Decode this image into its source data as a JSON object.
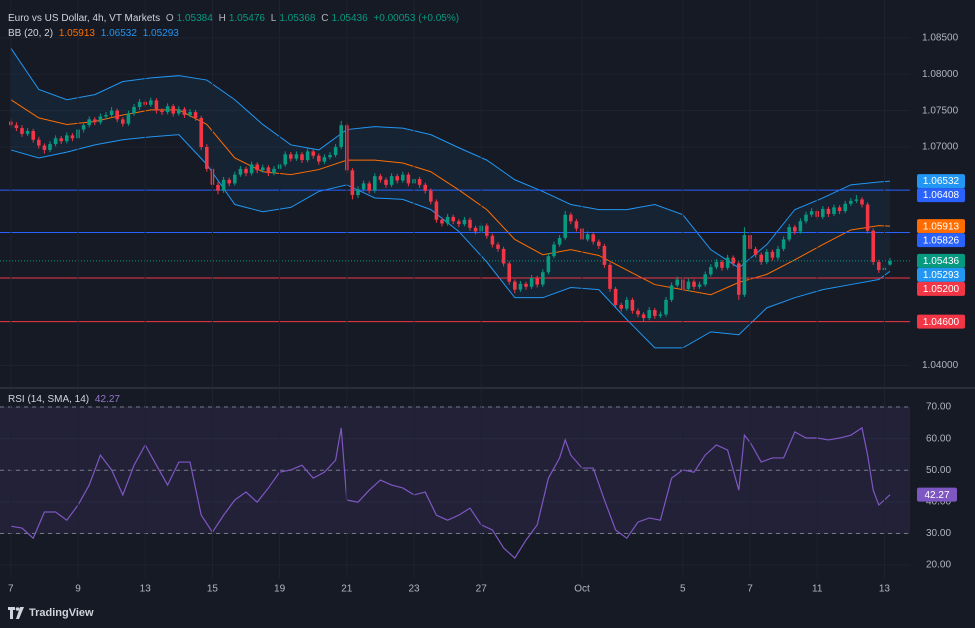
{
  "chart_data": {
    "type": "candlestick",
    "title": "Euro vs US Dollar, 4h, VT Markets",
    "ohlc_labels": [
      "O",
      "H",
      "L",
      "C"
    ],
    "change": "+0.00053 (+0.05%)",
    "up_color": "#089981",
    "down_color": "#f23645",
    "grid": true,
    "xlim": [
      -1.93,
      160.57
    ],
    "xticks": [
      {
        "value": 0,
        "label": "7"
      },
      {
        "value": 12,
        "label": "9"
      },
      {
        "value": 24,
        "label": "13"
      },
      {
        "value": 36,
        "label": "15"
      },
      {
        "value": 48,
        "label": "19"
      },
      {
        "value": 60,
        "label": "21"
      },
      {
        "value": 72,
        "label": "23"
      },
      {
        "value": 84,
        "label": "27"
      },
      {
        "value": 102,
        "label": "Oct"
      },
      {
        "value": 120,
        "label": "5"
      },
      {
        "value": 132,
        "label": "7"
      },
      {
        "value": 144,
        "label": "11"
      },
      {
        "value": 156,
        "label": "13"
      }
    ],
    "ylim": [
      1.0373,
      1.0902
    ],
    "yticks": [
      {
        "value": 1.085,
        "label": "1.08500"
      },
      {
        "value": 1.08,
        "label": "1.08000"
      },
      {
        "value": 1.075,
        "label": "1.07500"
      },
      {
        "value": 1.07,
        "label": "1.07000"
      },
      {
        "value": 1.04,
        "label": "1.04000"
      }
    ],
    "candles": [
      [
        1.0735,
        1.0739,
        1.0726,
        1.073
      ],
      [
        1.073,
        1.0734,
        1.0722,
        1.0726
      ],
      [
        1.0726,
        1.073,
        1.0714,
        1.0718
      ],
      [
        1.0718,
        1.0726,
        1.0715,
        1.0722
      ],
      [
        1.0722,
        1.0725,
        1.0706,
        1.071
      ],
      [
        1.071,
        1.0714,
        1.0698,
        1.0702
      ],
      [
        1.0702,
        1.0705,
        1.0691,
        1.0696
      ],
      [
        1.0696,
        1.0708,
        1.0693,
        1.0704
      ],
      [
        1.0704,
        1.0716,
        1.0701,
        1.0712
      ],
      [
        1.0712,
        1.0715,
        1.0704,
        1.0708
      ],
      [
        1.0708,
        1.072,
        1.0705,
        1.0716
      ],
      [
        1.0716,
        1.0719,
        1.0708,
        1.0712
      ],
      [
        1.0712,
        1.0728,
        1.0709,
        1.0724
      ],
      [
        1.0724,
        1.0734,
        1.072,
        1.073
      ],
      [
        1.073,
        1.0742,
        1.0727,
        1.0738
      ],
      [
        1.0738,
        1.0741,
        1.073,
        1.0734
      ],
      [
        1.0734,
        1.0746,
        1.0731,
        1.0742
      ],
      [
        1.0742,
        1.0748,
        1.0738,
        1.0744
      ],
      [
        1.0744,
        1.0755,
        1.074,
        1.075
      ],
      [
        1.075,
        1.0753,
        1.0734,
        1.0738
      ],
      [
        1.0738,
        1.0741,
        1.0728,
        1.0732
      ],
      [
        1.0732,
        1.075,
        1.0729,
        1.0746
      ],
      [
        1.0746,
        1.0759,
        1.0743,
        1.0755
      ],
      [
        1.0755,
        1.0766,
        1.0751,
        1.0762
      ],
      [
        1.0762,
        1.0765,
        1.0754,
        1.0758
      ],
      [
        1.0758,
        1.0768,
        1.0755,
        1.0764
      ],
      [
        1.0764,
        1.0767,
        1.0746,
        1.075
      ],
      [
        1.075,
        1.0753,
        1.0744,
        1.0748
      ],
      [
        1.0748,
        1.076,
        1.0745,
        1.0756
      ],
      [
        1.0756,
        1.0759,
        1.0742,
        1.0746
      ],
      [
        1.0746,
        1.0756,
        1.0743,
        1.0752
      ],
      [
        1.0752,
        1.0755,
        1.074,
        1.0744
      ],
      [
        1.0744,
        1.0752,
        1.0741,
        1.0748
      ],
      [
        1.0748,
        1.0751,
        1.0736,
        1.074
      ],
      [
        1.074,
        1.0743,
        1.0696,
        1.07
      ],
      [
        1.07,
        1.0704,
        1.0666,
        1.067
      ],
      [
        1.067,
        1.0674,
        1.0644,
        1.0648
      ],
      [
        1.0648,
        1.0652,
        1.0635,
        1.064
      ],
      [
        1.064,
        1.0659,
        1.0637,
        1.0655
      ],
      [
        1.0655,
        1.0658,
        1.0646,
        1.065
      ],
      [
        1.065,
        1.0666,
        1.0647,
        1.0662
      ],
      [
        1.0662,
        1.0674,
        1.0659,
        1.067
      ],
      [
        1.067,
        1.0673,
        1.066,
        1.0664
      ],
      [
        1.0664,
        1.068,
        1.0661,
        1.0676
      ],
      [
        1.0676,
        1.0679,
        1.0664,
        1.0668
      ],
      [
        1.0668,
        1.0676,
        1.0665,
        1.0672
      ],
      [
        1.0672,
        1.0675,
        1.066,
        1.0664
      ],
      [
        1.0664,
        1.0674,
        1.0661,
        1.067
      ],
      [
        1.067,
        1.068,
        1.0667,
        1.0676
      ],
      [
        1.0676,
        1.0694,
        1.0673,
        1.069
      ],
      [
        1.069,
        1.0693,
        1.068,
        1.0684
      ],
      [
        1.0684,
        1.0694,
        1.0681,
        1.069
      ],
      [
        1.069,
        1.0693,
        1.0678,
        1.0682
      ],
      [
        1.0682,
        1.0698,
        1.0679,
        1.0694
      ],
      [
        1.0694,
        1.0697,
        1.0684,
        1.0688
      ],
      [
        1.0688,
        1.0691,
        1.0676,
        1.068
      ],
      [
        1.068,
        1.069,
        1.0677,
        1.0686
      ],
      [
        1.0686,
        1.0693,
        1.0683,
        1.0689
      ],
      [
        1.0689,
        1.0704,
        1.0686,
        1.07
      ],
      [
        1.07,
        1.0736,
        1.0697,
        1.073
      ],
      [
        1.073,
        1.0733,
        1.0664,
        1.0668
      ],
      [
        1.0668,
        1.0671,
        1.0628,
        1.0634
      ],
      [
        1.0634,
        1.0646,
        1.063,
        1.0642
      ],
      [
        1.0642,
        1.0654,
        1.0639,
        1.065
      ],
      [
        1.065,
        1.0653,
        1.0636,
        1.064
      ],
      [
        1.064,
        1.0664,
        1.0637,
        1.066
      ],
      [
        1.066,
        1.0663,
        1.0651,
        1.0655
      ],
      [
        1.0655,
        1.0658,
        1.0644,
        1.0648
      ],
      [
        1.0648,
        1.0664,
        1.0645,
        1.066
      ],
      [
        1.066,
        1.0663,
        1.065,
        1.0654
      ],
      [
        1.0654,
        1.0666,
        1.0651,
        1.0662
      ],
      [
        1.0662,
        1.0665,
        1.0646,
        1.065
      ],
      [
        1.065,
        1.066,
        1.0647,
        1.0656
      ],
      [
        1.0656,
        1.0659,
        1.0644,
        1.0648
      ],
      [
        1.0648,
        1.0651,
        1.0636,
        1.064
      ],
      [
        1.064,
        1.0643,
        1.0621,
        1.0625
      ],
      [
        1.0625,
        1.0628,
        1.0596,
        1.06
      ],
      [
        1.06,
        1.0603,
        1.0591,
        1.0595
      ],
      [
        1.0595,
        1.0608,
        1.0592,
        1.0604
      ],
      [
        1.0604,
        1.0607,
        1.0594,
        1.0598
      ],
      [
        1.0598,
        1.0601,
        1.059,
        1.0594
      ],
      [
        1.0594,
        1.0604,
        1.0591,
        1.06
      ],
      [
        1.06,
        1.0603,
        1.0585,
        1.0589
      ],
      [
        1.0589,
        1.0592,
        1.058,
        1.0584
      ],
      [
        1.0584,
        1.0596,
        1.0581,
        1.0592
      ],
      [
        1.0592,
        1.0595,
        1.0574,
        1.0578
      ],
      [
        1.0578,
        1.0581,
        1.0562,
        1.0566
      ],
      [
        1.0566,
        1.0569,
        1.0556,
        1.056
      ],
      [
        1.056,
        1.0563,
        1.0536,
        1.054
      ],
      [
        1.054,
        1.0543,
        1.0511,
        1.0515
      ],
      [
        1.0515,
        1.0518,
        1.0499,
        1.0504
      ],
      [
        1.0504,
        1.0516,
        1.0501,
        1.0512
      ],
      [
        1.0512,
        1.0515,
        1.0504,
        1.0508
      ],
      [
        1.0508,
        1.0524,
        1.0505,
        1.052
      ],
      [
        1.052,
        1.0523,
        1.0507,
        1.0511
      ],
      [
        1.0511,
        1.0532,
        1.0508,
        1.0528
      ],
      [
        1.0528,
        1.0554,
        1.0525,
        1.055
      ],
      [
        1.055,
        1.057,
        1.0547,
        1.0566
      ],
      [
        1.0566,
        1.0579,
        1.0563,
        1.0575
      ],
      [
        1.0575,
        1.0612,
        1.0572,
        1.0607
      ],
      [
        1.0607,
        1.061,
        1.0594,
        1.0598
      ],
      [
        1.0598,
        1.0601,
        1.0584,
        1.0588
      ],
      [
        1.0588,
        1.0591,
        1.0569,
        1.0573
      ],
      [
        1.0573,
        1.0584,
        1.057,
        1.058
      ],
      [
        1.058,
        1.0583,
        1.0566,
        1.057
      ],
      [
        1.057,
        1.0573,
        1.056,
        1.0564
      ],
      [
        1.0564,
        1.0567,
        1.0534,
        1.0538
      ],
      [
        1.0538,
        1.0541,
        1.0501,
        1.0505
      ],
      [
        1.0505,
        1.0508,
        1.0479,
        1.0483
      ],
      [
        1.0483,
        1.0486,
        1.0474,
        1.0478
      ],
      [
        1.0478,
        1.0494,
        1.0475,
        1.049
      ],
      [
        1.049,
        1.0493,
        1.0471,
        1.0475
      ],
      [
        1.0475,
        1.0478,
        1.0466,
        1.047
      ],
      [
        1.047,
        1.0473,
        1.046,
        1.0465
      ],
      [
        1.0465,
        1.048,
        1.0462,
        1.0476
      ],
      [
        1.0476,
        1.0479,
        1.0464,
        1.0468
      ],
      [
        1.0468,
        1.0474,
        1.0465,
        1.047
      ],
      [
        1.047,
        1.0494,
        1.0467,
        1.049
      ],
      [
        1.049,
        1.0514,
        1.0487,
        1.051
      ],
      [
        1.051,
        1.0522,
        1.0507,
        1.0518
      ],
      [
        1.0518,
        1.0521,
        1.0501,
        1.0505
      ],
      [
        1.0505,
        1.0519,
        1.0502,
        1.0515
      ],
      [
        1.0515,
        1.0518,
        1.0504,
        1.0508
      ],
      [
        1.0508,
        1.0515,
        1.0505,
        1.0511
      ],
      [
        1.0511,
        1.0529,
        1.0508,
        1.0525
      ],
      [
        1.0525,
        1.0539,
        1.0522,
        1.0535
      ],
      [
        1.0535,
        1.0546,
        1.0532,
        1.0542
      ],
      [
        1.0542,
        1.0545,
        1.053,
        1.0534
      ],
      [
        1.0534,
        1.0552,
        1.0531,
        1.0548
      ],
      [
        1.0548,
        1.0551,
        1.0536,
        1.054
      ],
      [
        1.054,
        1.0543,
        1.049,
        1.0497
      ],
      [
        1.0497,
        1.059,
        1.0494,
        1.0579
      ],
      [
        1.0579,
        1.0582,
        1.0556,
        1.056
      ],
      [
        1.056,
        1.0563,
        1.0548,
        1.0552
      ],
      [
        1.0552,
        1.0555,
        1.0538,
        1.0542
      ],
      [
        1.0542,
        1.056,
        1.0539,
        1.0556
      ],
      [
        1.0556,
        1.0559,
        1.0544,
        1.0548
      ],
      [
        1.0548,
        1.0564,
        1.0545,
        1.056
      ],
      [
        1.056,
        1.0577,
        1.0557,
        1.0573
      ],
      [
        1.0573,
        1.0594,
        1.057,
        1.059
      ],
      [
        1.059,
        1.0593,
        1.058,
        1.0584
      ],
      [
        1.0584,
        1.0602,
        1.0581,
        1.0598
      ],
      [
        1.0598,
        1.0611,
        1.0595,
        1.0607
      ],
      [
        1.0607,
        1.0616,
        1.0604,
        1.0612
      ],
      [
        1.0612,
        1.0615,
        1.06,
        1.0604
      ],
      [
        1.0604,
        1.0619,
        1.0601,
        1.0615
      ],
      [
        1.0615,
        1.0618,
        1.0604,
        1.0608
      ],
      [
        1.0608,
        1.0621,
        1.0605,
        1.0617
      ],
      [
        1.0617,
        1.062,
        1.0608,
        1.0612
      ],
      [
        1.0612,
        1.0626,
        1.0609,
        1.0622
      ],
      [
        1.0622,
        1.063,
        1.0619,
        1.0626
      ],
      [
        1.0626,
        1.0634,
        1.0623,
        1.0628
      ],
      [
        1.0628,
        1.0631,
        1.0617,
        1.0621
      ],
      [
        1.0621,
        1.0624,
        1.0581,
        1.0585
      ],
      [
        1.0585,
        1.0588,
        1.0538,
        1.0542
      ],
      [
        1.0542,
        1.0545,
        1.0527,
        1.0531
      ],
      [
        1.0531,
        1.0538,
        1.0528,
        1.0534
      ],
      [
        1.05384,
        1.05476,
        1.05368,
        1.05436
      ]
    ],
    "bollinger": {
      "label": "BB (20, 2)",
      "fill": "rgba(33,150,243,0.07)",
      "x": [
        0,
        5,
        10,
        15,
        20,
        25,
        30,
        35,
        40,
        45,
        50,
        55,
        60,
        65,
        70,
        75,
        80,
        85,
        90,
        95,
        100,
        105,
        110,
        115,
        120,
        125,
        130,
        135,
        140,
        145,
        150,
        155,
        157
      ],
      "basis": {
        "color": "#ff6d00",
        "values": [
          1.0765,
          1.074,
          1.0731,
          1.0735,
          1.0744,
          1.0751,
          1.0751,
          1.0731,
          1.0685,
          1.0666,
          1.0662,
          1.0669,
          1.0682,
          1.0682,
          1.0678,
          1.0666,
          1.0641,
          1.0614,
          1.0573,
          1.0552,
          1.0559,
          1.0551,
          1.0531,
          1.0511,
          1.0504,
          1.0497,
          1.0514,
          1.0525,
          1.0545,
          1.0566,
          1.0586,
          1.0592,
          1.05913
        ]
      },
      "upper": {
        "color": "#2196f3",
        "values": [
          1.0836,
          1.0779,
          1.0765,
          1.0772,
          1.079,
          1.0795,
          1.0798,
          1.0792,
          1.0765,
          1.0731,
          1.0703,
          1.0696,
          1.0724,
          1.0728,
          1.0726,
          1.0717,
          1.0699,
          1.0682,
          1.0655,
          1.0639,
          1.0621,
          1.0614,
          1.0614,
          1.0621,
          1.0607,
          1.0559,
          1.0534,
          1.0566,
          1.0614,
          1.063,
          1.0648,
          1.0652,
          1.06532
        ]
      },
      "lower": {
        "color": "#2196f3",
        "values": [
          1.0696,
          1.0685,
          1.0693,
          1.0703,
          1.071,
          1.0714,
          1.0717,
          1.0676,
          1.0621,
          1.0611,
          1.0617,
          1.0639,
          1.0648,
          1.063,
          1.0628,
          1.0614,
          1.0584,
          1.0542,
          1.0493,
          1.0493,
          1.0507,
          1.0504,
          1.0463,
          1.0424,
          1.0424,
          1.0446,
          1.0442,
          1.0479,
          1.0493,
          1.0504,
          1.0511,
          1.0518,
          1.05293
        ]
      }
    },
    "hlines": [
      {
        "value": 1.06408,
        "color": "#2962ff"
      },
      {
        "value": 1.05826,
        "color": "#2962ff"
      },
      {
        "value": 1.052,
        "label": "1.05200",
        "color": "#f23645"
      },
      {
        "value": 1.046,
        "label": "1.04600",
        "color": "#f23645"
      }
    ],
    "indicator": {
      "type": "line",
      "label": "RSI (14, SMA, 14)",
      "color": "#7e57c2",
      "ylim": [
        15.9,
        75.4
      ],
      "yticks": [
        {
          "value": 70,
          "label": "70.00"
        },
        {
          "value": 60,
          "label": "60.00"
        },
        {
          "value": 50,
          "label": "50.00"
        },
        {
          "value": 40,
          "label": "40.00"
        },
        {
          "value": 30,
          "label": "30.00"
        },
        {
          "value": 20,
          "label": "20.00"
        }
      ],
      "levels": [
        70,
        50,
        30
      ],
      "x": [
        0,
        2,
        4,
        6,
        8,
        10,
        12,
        14,
        16,
        18,
        20,
        22,
        24,
        26,
        28,
        30,
        32,
        34,
        36,
        38,
        40,
        42,
        44,
        46,
        48,
        50,
        52,
        54,
        56,
        58,
        59,
        60,
        62,
        64,
        66,
        68,
        70,
        72,
        74,
        76,
        78,
        80,
        82,
        84,
        86,
        88,
        90,
        92,
        94,
        96,
        98,
        99,
        100,
        102,
        104,
        106,
        108,
        110,
        112,
        114,
        116,
        118,
        120,
        122,
        124,
        126,
        128,
        130,
        131,
        132,
        134,
        136,
        138,
        140,
        142,
        144,
        146,
        148,
        150,
        152,
        153,
        154,
        155,
        156,
        157
      ],
      "values": [
        32.3,
        31.7,
        28.5,
        36.8,
        36.8,
        34.2,
        39.0,
        45.3,
        54.8,
        50.1,
        42.2,
        51.6,
        58.0,
        51.6,
        45.3,
        52.6,
        52.6,
        35.8,
        30.4,
        35.8,
        40.6,
        43.1,
        39.9,
        44.4,
        49.4,
        50.1,
        51.6,
        47.5,
        49.4,
        53.2,
        63.4,
        40.6,
        39.9,
        43.7,
        46.9,
        45.3,
        44.4,
        42.2,
        43.1,
        35.8,
        34.2,
        35.8,
        38.0,
        32.7,
        31.1,
        25.4,
        22.2,
        27.9,
        32.7,
        47.5,
        53.9,
        59.6,
        54.8,
        50.7,
        50.7,
        40.6,
        31.1,
        28.5,
        33.6,
        34.9,
        34.2,
        47.5,
        50.1,
        49.4,
        54.8,
        58.0,
        56.4,
        43.7,
        61.1,
        58.9,
        52.6,
        53.9,
        53.9,
        62.1,
        60.2,
        60.2,
        59.6,
        60.2,
        61.1,
        63.4,
        54.8,
        43.7,
        39.0,
        40.6,
        42.27
      ]
    },
    "brand": "TradingView"
  }
}
